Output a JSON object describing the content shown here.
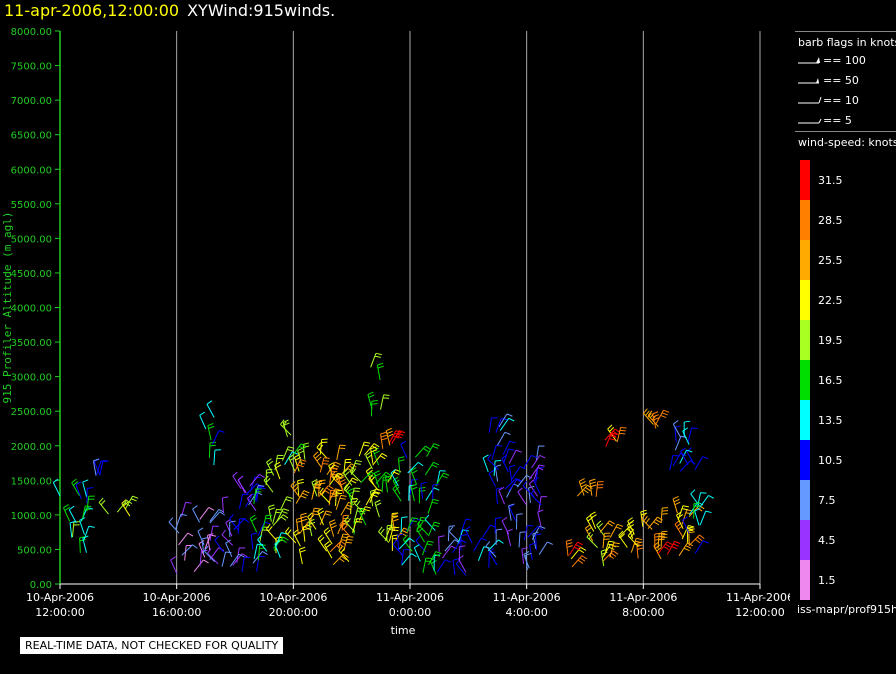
{
  "header": {
    "date": "11-apr-2006,12:00:00",
    "name": "XYWind:915winds."
  },
  "notice": "REAL-TIME DATA, NOT CHECKED FOR QUALITY",
  "source": "iss-mapr/prof915h",
  "colors": {
    "axis_y": "#22cc22",
    "axis_x": "#ffffff",
    "grid": "#aaaaaa",
    "background": "#000000"
  },
  "legend": {
    "barb_title": "barb flags in knots",
    "barb_items": [
      "== 100",
      "== 50",
      "== 10",
      "== 5"
    ],
    "speed_title": "wind-speed: knots",
    "speed_bins": [
      {
        "label": "31.5",
        "color": "#ff0000"
      },
      {
        "label": "28.5",
        "color": "#ff7f00"
      },
      {
        "label": "25.5",
        "color": "#ffaa00"
      },
      {
        "label": "22.5",
        "color": "#ffff00"
      },
      {
        "label": "19.5",
        "color": "#aaff22"
      },
      {
        "label": "16.5",
        "color": "#00dd00"
      },
      {
        "label": "13.5",
        "color": "#00ffff"
      },
      {
        "label": "10.5",
        "color": "#0000ff"
      },
      {
        "label": "7.5",
        "color": "#6699ff"
      },
      {
        "label": "4.5",
        "color": "#9933ff"
      },
      {
        "label": "1.5",
        "color": "#ee88ee"
      }
    ]
  },
  "chart_data": {
    "type": "scatter",
    "title": "XYWind:915winds.",
    "xlabel": "time",
    "ylabel": "915 Profiler Altitude (m agl)",
    "ylim": [
      0,
      8000
    ],
    "y_ticks": [
      "0.00",
      "500.00",
      "1000.00",
      "1500.00",
      "2000.00",
      "2500.00",
      "3000.00",
      "3500.00",
      "4000.00",
      "4500.00",
      "5000.00",
      "5500.00",
      "6000.00",
      "6500.00",
      "7000.00",
      "7500.00",
      "8000.00"
    ],
    "x_ticks": [
      {
        "date": "10-Apr-2006",
        "time": "12:00:00"
      },
      {
        "date": "10-Apr-2006",
        "time": "16:00:00"
      },
      {
        "date": "10-Apr-2006",
        "time": "20:00:00"
      },
      {
        "date": "11-Apr-2006",
        "time": "0:00:00"
      },
      {
        "date": "11-Apr-2006",
        "time": "4:00:00"
      },
      {
        "date": "11-Apr-2006",
        "time": "8:00:00"
      },
      {
        "date": "11-Apr-2006",
        "time": "12:00:00"
      }
    ],
    "grid": "vertical lines at x ticks",
    "clusters": [
      {
        "t": [
          12.0,
          13.0
        ],
        "alt": [
          400,
          1350
        ],
        "speed": 15
      },
      {
        "t": [
          13.0,
          13.4
        ],
        "alt": [
          1550,
          1600
        ],
        "speed": 9
      },
      {
        "t": [
          13.6,
          14.4
        ],
        "alt": [
          950,
          1100
        ],
        "speed": 22
      },
      {
        "t": [
          15.9,
          17.3
        ],
        "alt": [
          150,
          1000
        ],
        "speed": 5
      },
      {
        "t": [
          16.9,
          17.4
        ],
        "alt": [
          1700,
          2450
        ],
        "speed": 14
      },
      {
        "t": [
          17.3,
          18.8
        ],
        "alt": [
          150,
          1450
        ],
        "speed": 8
      },
      {
        "t": [
          18.6,
          19.6
        ],
        "alt": [
          300,
          1700
        ],
        "speed": 18
      },
      {
        "t": [
          19.6,
          20.4
        ],
        "alt": [
          1700,
          2200
        ],
        "speed": 18
      },
      {
        "t": [
          20.0,
          22.0
        ],
        "alt": [
          200,
          1900
        ],
        "speed": 24
      },
      {
        "t": [
          21.9,
          23.4
        ],
        "alt": [
          600,
          1900
        ],
        "speed": 20
      },
      {
        "t": [
          22.6,
          23.0
        ],
        "alt": [
          2400,
          3200
        ],
        "speed": 19
      },
      {
        "t": [
          22.8,
          23.4
        ],
        "alt": [
          1900,
          2100
        ],
        "speed": 30
      },
      {
        "t": [
          23.2,
          23.6
        ],
        "alt": [
          150,
          1000
        ],
        "speed": 24
      },
      {
        "t": [
          23.6,
          25.0
        ],
        "alt": [
          100,
          1900
        ],
        "speed": 14
      },
      {
        "t": [
          25.0,
          27.0
        ],
        "alt": [
          100,
          800
        ],
        "speed": 9
      },
      {
        "t": [
          26.6,
          27.4
        ],
        "alt": [
          1100,
          2300
        ],
        "speed": 11
      },
      {
        "t": [
          27.2,
          28.6
        ],
        "alt": [
          200,
          1800
        ],
        "speed": 8
      },
      {
        "t": [
          29.6,
          30.4
        ],
        "alt": [
          1250,
          1350
        ],
        "speed": 27
      },
      {
        "t": [
          29.4,
          29.6
        ],
        "alt": [
          150,
          500
        ],
        "speed": 27
      },
      {
        "t": [
          30.2,
          32.2
        ],
        "alt": [
          250,
          900
        ],
        "speed": 24
      },
      {
        "t": [
          30.6,
          31.2
        ],
        "alt": [
          1950,
          2100
        ],
        "speed": 27
      },
      {
        "t": [
          32.2,
          33.6
        ],
        "alt": [
          300,
          1100
        ],
        "speed": 27
      },
      {
        "t": [
          32.2,
          32.8
        ],
        "alt": [
          2200,
          2350
        ],
        "speed": 27
      },
      {
        "t": [
          32.8,
          34.0
        ],
        "alt": [
          1500,
          2150
        ],
        "speed": 10
      },
      {
        "t": [
          33.5,
          34.0
        ],
        "alt": [
          100,
          1200
        ],
        "speed": 14
      }
    ]
  }
}
